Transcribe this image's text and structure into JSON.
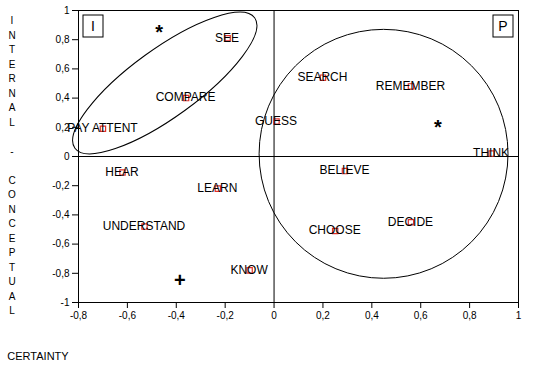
{
  "chart_data": {
    "type": "scatter",
    "x_label": "CERTAINTY",
    "y_label": "INTERNAL - CONCEPTUAL",
    "xlim": [
      -0.8,
      1
    ],
    "ylim": [
      -1,
      1
    ],
    "xticks": [
      {
        "value": -0.8,
        "label": "-0,8"
      },
      {
        "value": -0.6,
        "label": "-0,6"
      },
      {
        "value": -0.4,
        "label": "-0,4"
      },
      {
        "value": -0.2,
        "label": "-0,2"
      },
      0,
      {
        "value": 0.2,
        "label": "0,2"
      },
      {
        "value": 0.4,
        "label": "0,4"
      },
      {
        "value": 0.6,
        "label": "0,6"
      },
      {
        "value": 0.8,
        "label": "0,8"
      },
      1
    ],
    "yticks": [
      -1,
      {
        "value": -0.8,
        "label": "-0,8"
      },
      {
        "value": -0.6,
        "label": "-0,6"
      },
      {
        "value": -0.4,
        "label": "-0,4"
      },
      {
        "value": -0.2,
        "label": "-0,2"
      },
      0,
      {
        "value": 0.2,
        "label": "0,2"
      },
      {
        "value": 0.4,
        "label": "0,4"
      },
      {
        "value": 0.6,
        "label": "0,6"
      },
      {
        "value": 0.8,
        "label": "0,8"
      },
      1
    ],
    "grid": false,
    "marker": "square",
    "color": "#e0302b",
    "points": [
      {
        "label": "SEE",
        "x": -0.19,
        "y": 0.81
      },
      {
        "label": "COMPARE",
        "x": -0.36,
        "y": 0.4
      },
      {
        "label": "PAY ATTENT",
        "x": -0.7,
        "y": 0.19
      },
      {
        "label": "SEARCH",
        "x": 0.2,
        "y": 0.54
      },
      {
        "label": "REMEMBER",
        "x": 0.56,
        "y": 0.48
      },
      {
        "label": "GUESS",
        "x": 0.01,
        "y": 0.24
      },
      {
        "label": "THINK",
        "x": 0.89,
        "y": 0.02
      },
      {
        "label": "HEAR",
        "x": -0.62,
        "y": -0.11
      },
      {
        "label": "LEARN",
        "x": -0.23,
        "y": -0.22
      },
      {
        "label": "UNDERSTAND",
        "x": -0.53,
        "y": -0.48
      },
      {
        "label": "KNOW",
        "x": -0.1,
        "y": -0.78
      },
      {
        "label": "BELIEVE",
        "x": 0.29,
        "y": -0.1
      },
      {
        "label": "CHOOSE",
        "x": 0.25,
        "y": -0.51
      },
      {
        "label": "DECIDE",
        "x": 0.56,
        "y": -0.45
      }
    ],
    "groups": [
      {
        "label": "I",
        "points": [
          "SEE",
          "COMPARE",
          "PAY ATTENT"
        ]
      },
      {
        "label": "P",
        "points": [
          "SEARCH",
          "REMEMBER",
          "GUESS",
          "THINK",
          "BELIEVE",
          "CHOOSE",
          "DECIDE"
        ]
      }
    ],
    "annotations": [
      {
        "text": "*",
        "x": -0.47,
        "y": 0.85
      },
      {
        "text": "*",
        "x": 0.67,
        "y": 0.2
      },
      {
        "text": "+",
        "x": -0.385,
        "y": -0.85
      }
    ]
  }
}
